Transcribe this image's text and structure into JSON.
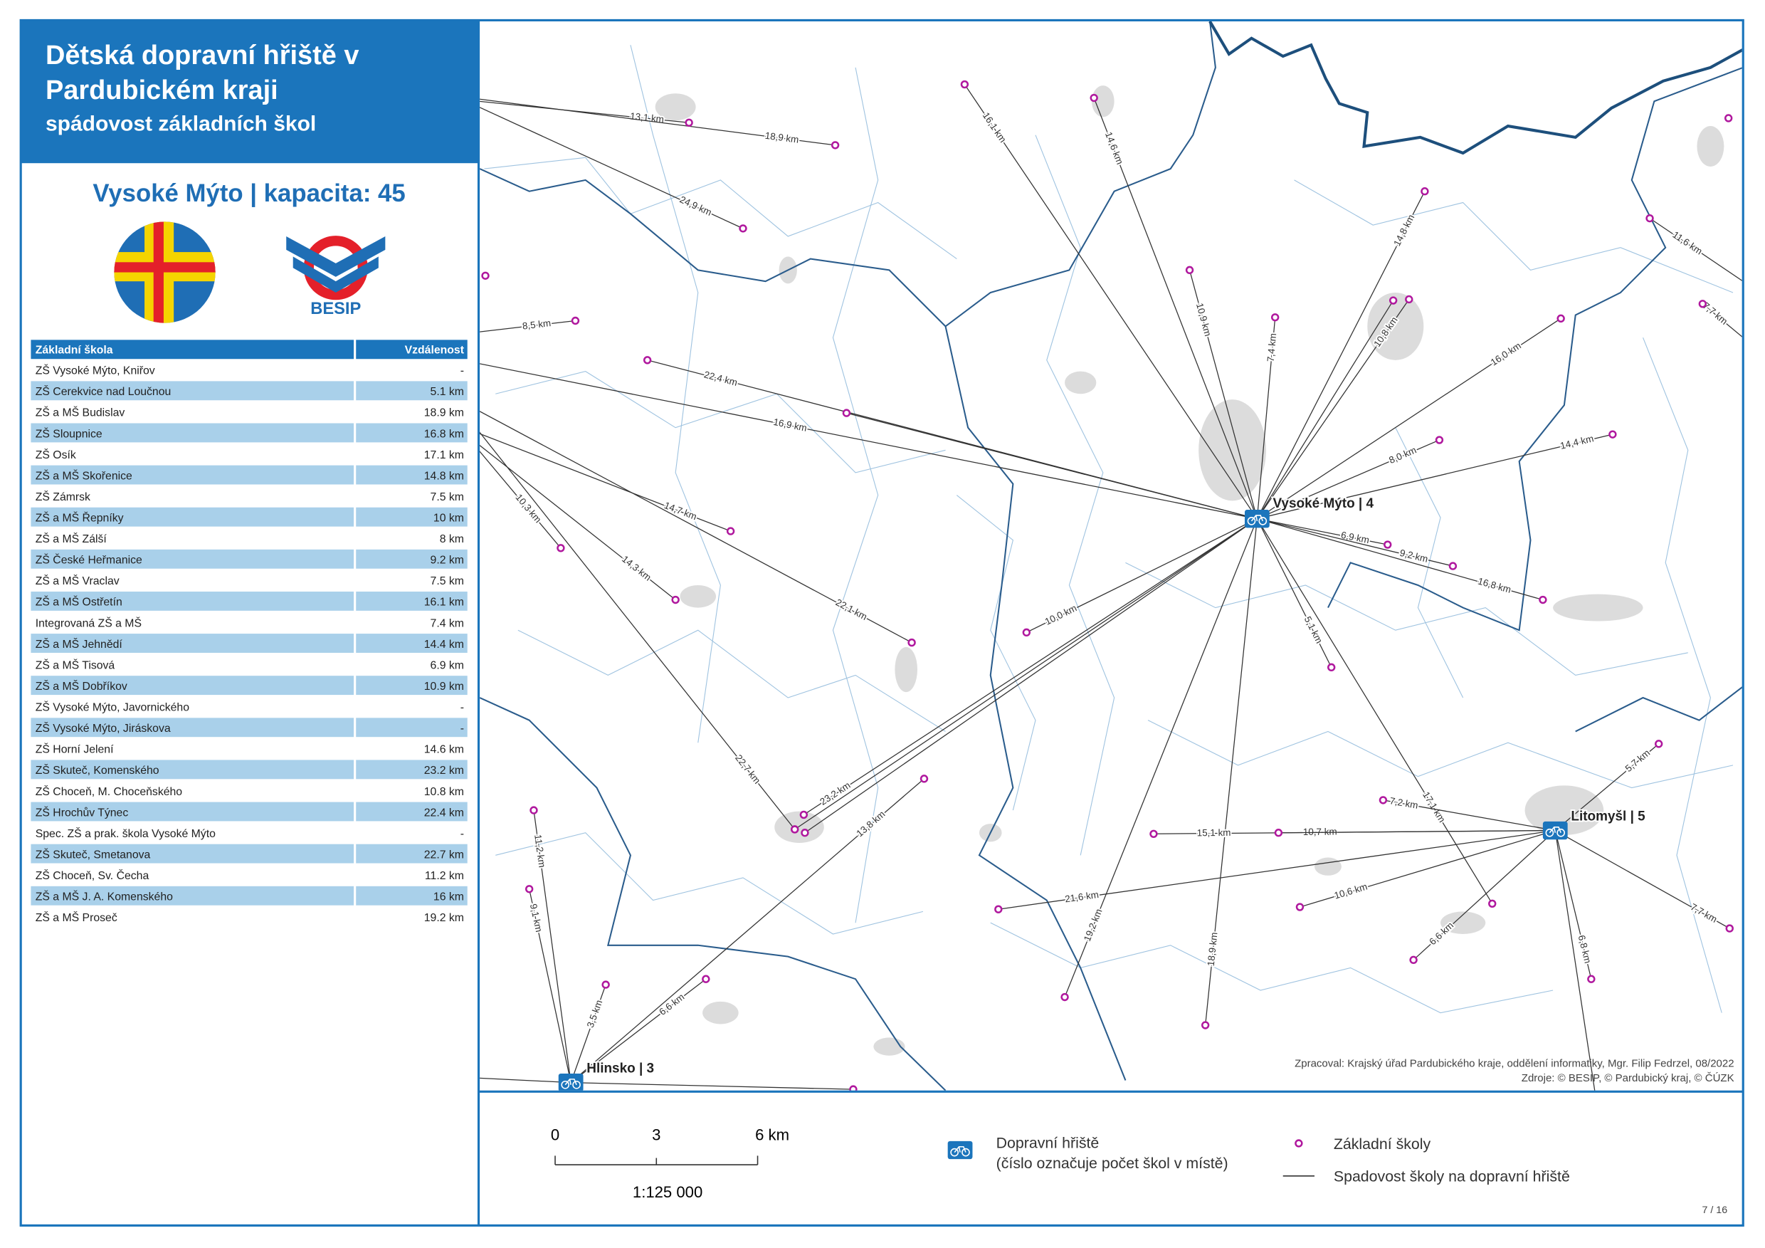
{
  "header": {
    "title_lines": [
      "Dětská dopravní hřiště v",
      "Pardubickém kraji"
    ],
    "subtitle": "spádovost základních škol"
  },
  "panel": {
    "heading": "Vysoké Mýto | kapacita: 45",
    "logo_text": "BESIP"
  },
  "table": {
    "columns": [
      "Základní škola",
      "Vzdálenost"
    ],
    "rows": [
      [
        "ZŠ Vysoké Mýto, Kniřov",
        "-"
      ],
      [
        "ZŠ Cerekvice nad Loučnou",
        "5.1 km"
      ],
      [
        "ZŠ a MŠ Budislav",
        "18.9 km"
      ],
      [
        "ZŠ Sloupnice",
        "16.8 km"
      ],
      [
        "ZŠ Osík",
        "17.1 km"
      ],
      [
        "ZŠ a MŠ Skořenice",
        "14.8 km"
      ],
      [
        "ZŠ Zámrsk",
        "7.5 km"
      ],
      [
        "ZŠ a MŠ Řepníky",
        "10 km"
      ],
      [
        "ZŠ a MŠ Zálší",
        "8 km"
      ],
      [
        "ZŠ České Heřmanice",
        "9.2 km"
      ],
      [
        "ZŠ a MŠ Vraclav",
        "7.5 km"
      ],
      [
        "ZŠ a MŠ Ostřetín",
        "16.1 km"
      ],
      [
        "Integrovaná ZŠ a MŠ",
        "7.4 km"
      ],
      [
        "ZŠ a MŠ Jehnědí",
        "14.4 km"
      ],
      [
        "ZŠ a MŠ Tisová",
        "6.9 km"
      ],
      [
        "ZŠ a MŠ Dobříkov",
        "10.9 km"
      ],
      [
        "ZŠ Vysoké Mýto, Javornického",
        "-"
      ],
      [
        "ZŠ Vysoké Mýto, Jiráskova",
        "-"
      ],
      [
        "ZŠ Horní Jelení",
        "14.6 km"
      ],
      [
        "ZŠ Skuteč, Komenského",
        "23.2 km"
      ],
      [
        "ZŠ Choceň, M. Choceňského",
        "10.8 km"
      ],
      [
        "ZŠ Hrochův Týnec",
        "22.4 km"
      ],
      [
        "Spec. ZŠ a prak. škola Vysoké Mýto",
        "-"
      ],
      [
        "ZŠ Skuteč, Smetanova",
        "22.7 km"
      ],
      [
        "ZŠ Choceň, Sv. Čecha",
        "11.2 km"
      ],
      [
        "ZŠ a MŠ J. A. Komenského",
        "16 km"
      ],
      [
        "ZŠ a MŠ Proseč",
        "19.2 km"
      ]
    ]
  },
  "map": {
    "hubs": [
      "Vysoké Mýto | 4",
      "Litomyšl | 5",
      "Hlinsko | 3"
    ],
    "links": [
      "13,1 km",
      "18,9 km",
      "24,9 km",
      "8,5 km",
      "22,4 km",
      "16,9 km",
      "14,7 km",
      "14,3 km",
      "10,3 km",
      "22,1 km",
      "22,7 km",
      "10,0 km",
      "23,2 km",
      "16,1 km",
      "14,6 km",
      "10,9 km",
      "7,4 km",
      "14,8 km",
      "10,8 km",
      "16,0 km",
      "8,0 km",
      "14,4 km",
      "6,9 km",
      "9,2 km",
      "16,8 km",
      "5,1 km",
      "17,1 km",
      "18,9 km",
      "19,2 km",
      "11,6 km",
      "7,7 km",
      "5,7 km",
      "7,2 km",
      "10,7 km",
      "15,1 km",
      "10,6 km",
      "21,6 km",
      "6,6 km",
      "6,8 km",
      "7,7 km",
      "11,2 km",
      "9,1 km",
      "3,5 km",
      "6,6 km",
      "13,8 km"
    ],
    "credits": [
      "Zpracoval: Krajský úřad Pardubického kraje, oddělení informatiky, Mgr. Filip Fedrzel, 08/2022",
      "Zdroje: © BESIP, © Pardubický kraj, © ČÚZK"
    ]
  },
  "legend": {
    "scale_ticks": [
      "0",
      "3",
      "6 km"
    ],
    "scale_ratio": "1:125 000",
    "hub_item": [
      "Dopravní hřiště",
      "(číslo označuje počet škol v místě)"
    ],
    "school_item": "Základní školy",
    "line_item": "Spadovost školy na dopravní hřiště"
  },
  "page": "7 / 16"
}
